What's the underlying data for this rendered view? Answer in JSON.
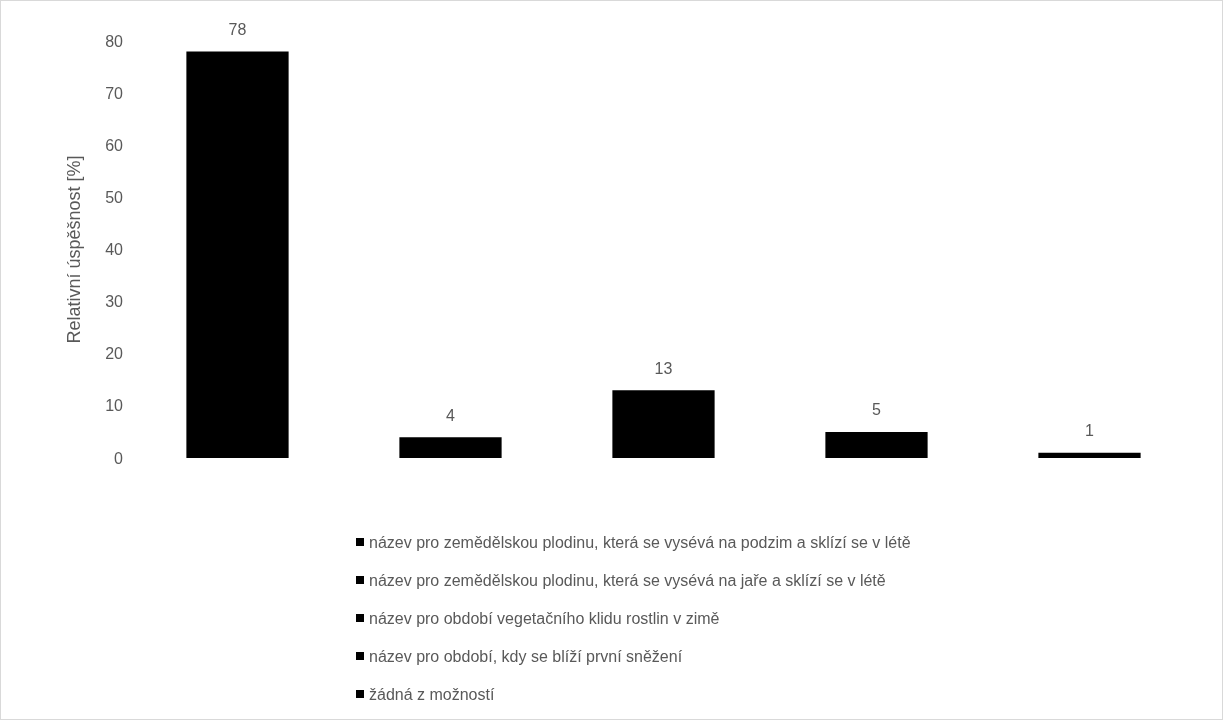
{
  "chart_data": {
    "type": "bar",
    "ylabel": "Relativní úspěšnost [%]",
    "categories": [
      null,
      null,
      null,
      null,
      null
    ],
    "stacked": true,
    "series": [
      {
        "name": "název pro zemědělskou plodinu, která se vysévá na podzim a sklízí se v létě",
        "color": "#000000",
        "values": [
          78,
          null,
          null,
          null,
          null
        ]
      },
      {
        "name": "název pro zemědělskou plodinu, která se vysévá na jaře a sklízí se v létě",
        "color": "#000000",
        "values": [
          null,
          4,
          null,
          null,
          null
        ]
      },
      {
        "name": "název pro období vegetačního klidu rostlin v zimě",
        "color": "#000000",
        "values": [
          null,
          null,
          13,
          null,
          null
        ]
      },
      {
        "name": "název pro období, kdy se blíží první sněžení",
        "color": "#000000",
        "values": [
          null,
          null,
          null,
          5,
          null
        ]
      },
      {
        "name": "žádná z možností",
        "color": "#000000",
        "values": [
          null,
          null,
          null,
          null,
          1
        ]
      }
    ],
    "ylim": [
      0,
      80
    ],
    "yticks": [
      0,
      10,
      20,
      30,
      40,
      50,
      60,
      70,
      80
    ],
    "data_labels": true,
    "legend": "bottom",
    "grid": false
  }
}
